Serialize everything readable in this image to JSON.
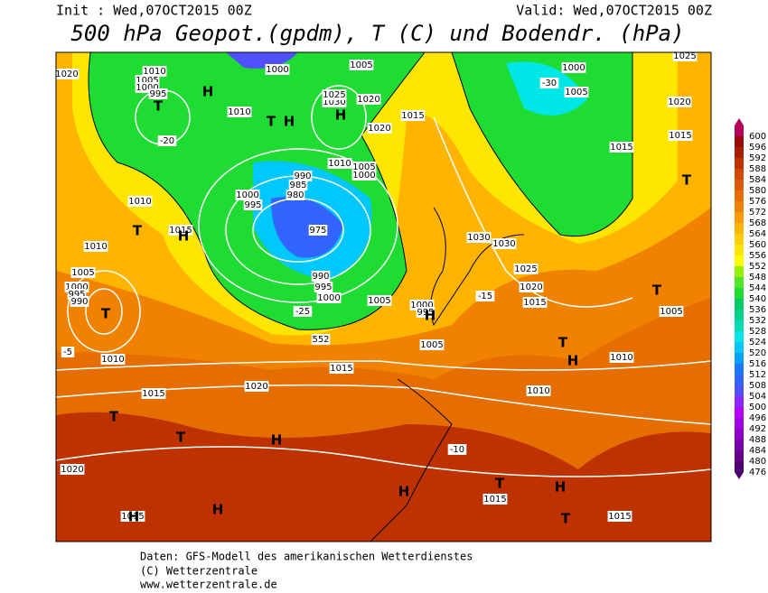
{
  "header": {
    "init": "Init : Wed,07OCT2015 00Z",
    "valid": "Valid: Wed,07OCT2015 00Z",
    "title": "500 hPa Geopot.(gpdm), T (C) und Bodendr. (hPa)"
  },
  "colorbar": {
    "levels": [
      476,
      480,
      484,
      488,
      492,
      496,
      500,
      504,
      508,
      512,
      516,
      520,
      524,
      528,
      532,
      536,
      540,
      544,
      548,
      552,
      556,
      560,
      564,
      568,
      572,
      576,
      580,
      584,
      588,
      592,
      596,
      600
    ],
    "colors": [
      "#50006e",
      "#64008c",
      "#7800aa",
      "#8c00c8",
      "#a000e6",
      "#b400ff",
      "#8c28ff",
      "#5050ff",
      "#3264ff",
      "#1e78ff",
      "#00a0ff",
      "#00c8ff",
      "#00e6e6",
      "#00dcb4",
      "#00d28c",
      "#00c864",
      "#1edc32",
      "#50e628",
      "#96f000",
      "#ffff00",
      "#ffe600",
      "#ffcd00",
      "#ffb400",
      "#ff9b00",
      "#f08200",
      "#e66e00",
      "#dc5a00",
      "#d24600",
      "#be3200",
      "#aa1e00",
      "#960a0a",
      "#b4005a"
    ]
  },
  "map": {
    "labels": [
      "1020",
      "1010",
      "1005",
      "1000",
      "995",
      "H",
      "T",
      "1000",
      "1005",
      "1010",
      "1030",
      "1025",
      "1020",
      "H",
      "T",
      "H",
      "990",
      "985",
      "980",
      "1000",
      "995",
      "975",
      "1010",
      "1005",
      "1000",
      "1020",
      "1015",
      "1010",
      "1015",
      "T",
      "H",
      "1010",
      "1005",
      "1000",
      "995",
      "990",
      "T",
      "990",
      "995",
      "1000",
      "1005",
      "552",
      "1015",
      "1010",
      "1005",
      "1000",
      "995",
      "H",
      "1030",
      "1030",
      "1025",
      "1020",
      "1015",
      "1000",
      "1005",
      "1015",
      "1025",
      "1020",
      "1015",
      "T",
      "1005",
      "T",
      "T",
      "H",
      "1010",
      "1020",
      "1015",
      "T",
      "T",
      "H",
      "1010",
      "1015",
      "H",
      "1015",
      "T",
      "H",
      "T",
      "1015",
      "1020",
      "H",
      "H",
      "-20",
      "-30",
      "-25",
      "-15",
      "-10",
      "-5"
    ]
  },
  "footer": {
    "line1": "Daten: GFS-Modell des amerikanischen Wetterdienstes",
    "line2": "(C) Wetterzentrale",
    "line3": "www.wetterzentrale.de"
  }
}
